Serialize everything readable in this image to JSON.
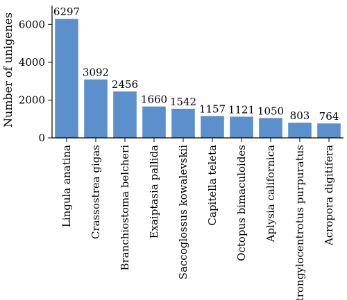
{
  "chart_data": {
    "type": "bar",
    "title": "",
    "xlabel": "",
    "ylabel": "Number of unigenes",
    "ylim": [
      0,
      7000
    ],
    "yticks": [
      0,
      2000,
      4000,
      6000
    ],
    "grid": false,
    "legend": "none",
    "bar_color": "#5b90cc",
    "categories": [
      "Lingula anatina",
      "Crassostrea gigas",
      "Branchiostoma belcheri",
      "Exaiptasia pallida",
      "Saccoglossus kowalevskii",
      "Capitella teleta",
      "Octopus bimaculoides",
      "Aplysia californica",
      "Strongylocentrotus purpuratus",
      "Acropora digitifera"
    ],
    "values": [
      6297,
      3092,
      2456,
      1660,
      1542,
      1157,
      1121,
      1050,
      803,
      764
    ]
  }
}
